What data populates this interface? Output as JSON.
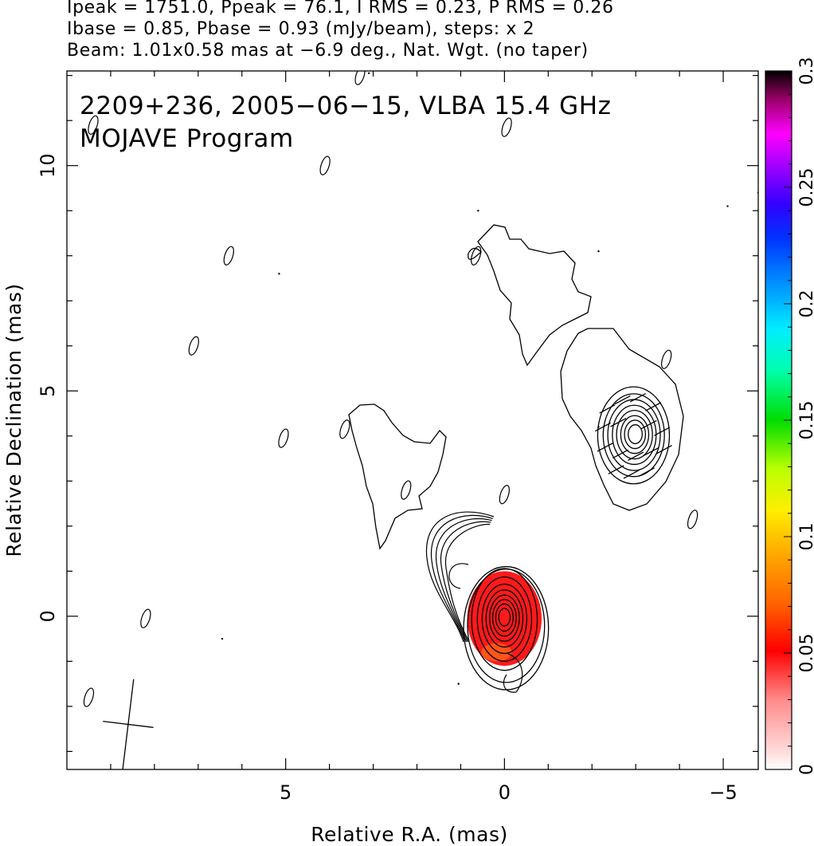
{
  "header": {
    "line1": "Ipeak = 1751.0, Ppeak = 76.1, I RMS = 0.23, P RMS = 0.26",
    "line2": "Ibase = 0.85, Pbase = 0.93 (mJy/beam), steps: x 2",
    "line3": "Beam: 1.01x0.58 mas at −6.9 deg., Nat. Wgt. (no taper)"
  },
  "chart_data": {
    "type": "heatmap",
    "title": "2209+236, 2005−06−15, VLBA 15.4 GHz",
    "subtitle": "MOJAVE Program",
    "xlabel": "Relative R.A. (mas)",
    "ylabel": "Relative Declination (mas)",
    "xlim": [
      10.0,
      -5.8
    ],
    "ylim": [
      -3.4,
      12.1
    ],
    "x_ticks": [
      5,
      0,
      -5
    ],
    "x_tick_labels": [
      "5",
      "0",
      "−5"
    ],
    "y_ticks": [
      0,
      5,
      10
    ],
    "y_tick_labels": [
      "0",
      "5",
      "10"
    ],
    "colorbar": {
      "min": 0,
      "max": 0.3,
      "ticks": [
        0,
        0.05,
        0.1,
        0.15,
        0.2,
        0.25,
        0.3
      ],
      "tick_labels": [
        "0",
        "0.05",
        "0.1",
        "0.15",
        "0.2",
        "0.25",
        "0.3"
      ]
    },
    "beam": {
      "major_mas": 1.01,
      "minor_mas": 0.58,
      "pa_deg": -6.9,
      "center": [
        8.6,
        -2.4
      ]
    },
    "core": {
      "center": [
        0.0,
        0.0
      ],
      "contour_radii_mas": [
        0.75,
        0.62,
        0.51,
        0.42,
        0.34,
        0.27,
        0.2,
        0.13
      ],
      "aspect": 1.55
    },
    "polarized_region": {
      "center": [
        0.0,
        -0.05
      ],
      "rx": 0.85,
      "ry": 1.05,
      "color_level": 0.04
    },
    "knot": {
      "center": [
        -2.95,
        4.05
      ],
      "contour_radii_mas": [
        0.82,
        0.7,
        0.6,
        0.5,
        0.41,
        0.32,
        0.24,
        0.16
      ],
      "aspect": 1.35
    },
    "evpa_ticks": [
      [
        -2.35,
        4.6
      ],
      [
        -2.7,
        4.8
      ],
      [
        -3.05,
        4.85
      ],
      [
        -3.4,
        4.65
      ],
      [
        -2.25,
        4.2
      ],
      [
        -2.6,
        4.3
      ],
      [
        -3.3,
        4.25
      ],
      [
        -3.6,
        4.1
      ],
      [
        -2.3,
        3.75
      ],
      [
        -2.65,
        3.6
      ],
      [
        -3.0,
        3.55
      ],
      [
        -3.35,
        3.65
      ],
      [
        -3.65,
        3.7
      ],
      [
        -2.55,
        3.25
      ],
      [
        -2.9,
        3.15
      ],
      [
        -3.25,
        3.2
      ]
    ],
    "islands": [
      [
        -0.05,
        10.85
      ],
      [
        9.4,
        10.9
      ],
      [
        4.1,
        10.0
      ],
      [
        6.3,
        8.0
      ],
      [
        7.1,
        6.0
      ],
      [
        5.05,
        3.95
      ],
      [
        3.65,
        4.15
      ],
      [
        2.25,
        2.8
      ],
      [
        0.0,
        2.7
      ],
      [
        -4.3,
        2.15
      ],
      [
        8.2,
        -0.05
      ],
      [
        9.5,
        -1.8
      ],
      [
        3.3,
        12.0
      ],
      [
        0.65,
        8.0
      ],
      [
        -3.7,
        5.7
      ]
    ]
  }
}
